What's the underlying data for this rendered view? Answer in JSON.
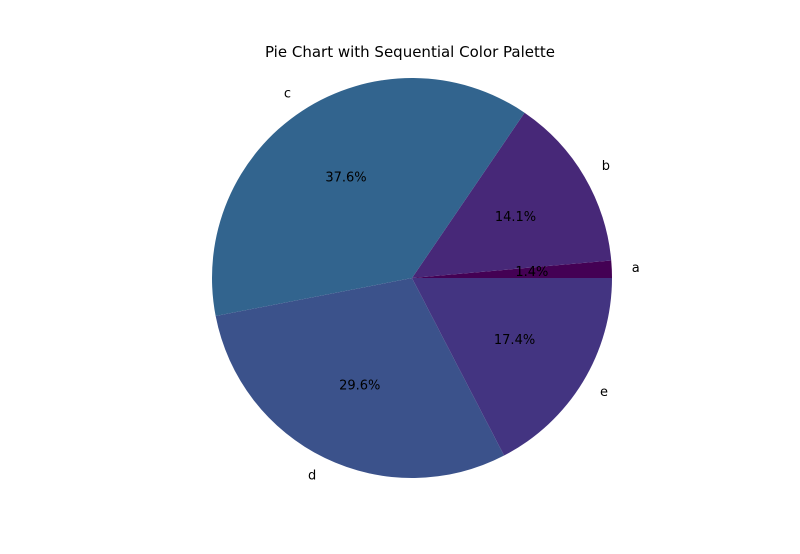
{
  "chart_data": {
    "type": "pie",
    "title": "Pie Chart with Sequential Color Palette",
    "start_angle_deg": 0,
    "direction": "counterclockwise",
    "slices": [
      {
        "label": "a",
        "percent": 1.4,
        "percent_label": "1.4%",
        "color": "#440154"
      },
      {
        "label": "b",
        "percent": 14.1,
        "percent_label": "14.1%",
        "color": "#472878"
      },
      {
        "label": "c",
        "percent": 37.6,
        "percent_label": "37.6%",
        "color": "#32648e"
      },
      {
        "label": "d",
        "percent": 29.6,
        "percent_label": "29.6%",
        "color": "#3b528b"
      },
      {
        "label": "e",
        "percent": 17.4,
        "percent_label": "17.4%",
        "color": "#433481"
      }
    ]
  }
}
